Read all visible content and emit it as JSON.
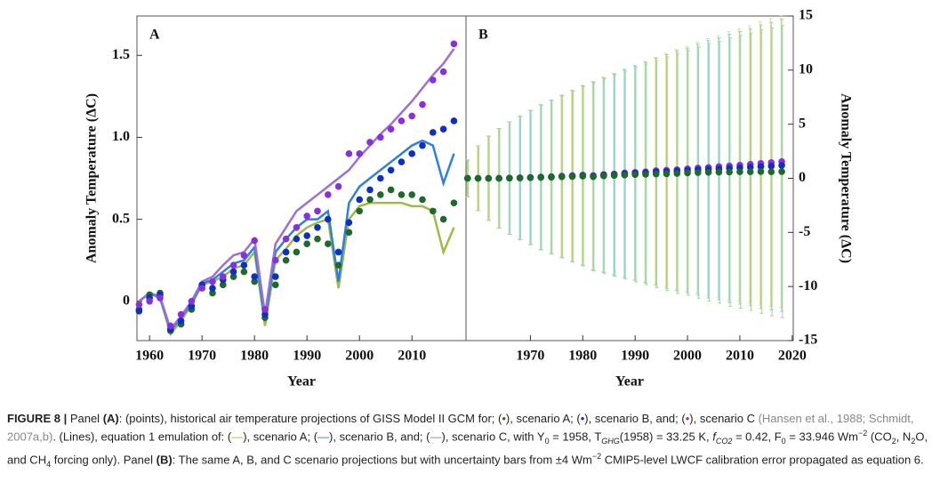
{
  "chart_data": [
    {
      "type": "scatter",
      "panel": "A",
      "xlabel": "Year",
      "ylabel": "Anomaly Temperature (ΔC)",
      "yaxis_side": "left",
      "xlim": [
        1957.6,
        2020.3
      ],
      "xticks": [
        1960,
        1970,
        1980,
        1990,
        2000,
        2010
      ],
      "ylim": [
        -0.24,
        1.74
      ],
      "yticks": [
        0,
        0.5,
        {
          "value": 1,
          "label": "1.0"
        },
        1.5
      ],
      "x": [
        1958,
        1960,
        1962,
        1964,
        1966,
        1968,
        1970,
        1972,
        1974,
        1976,
        1978,
        1980,
        1982,
        1984,
        1986,
        1988,
        1990,
        1992,
        1994,
        1996,
        1998,
        2000,
        2002,
        2004,
        2006,
        2008,
        2010,
        2012,
        2014,
        2016,
        2018
      ],
      "series": [
        {
          "name": "scenario A",
          "mode": "lines",
          "color": "#9dbb45",
          "values": [
            0,
            0.05,
            0.02,
            -0.2,
            -0.12,
            -0.02,
            0.1,
            0.12,
            0.15,
            0.2,
            0.22,
            0.3,
            -0.15,
            0.25,
            0.32,
            0.4,
            0.45,
            0.48,
            0.5,
            0.08,
            0.5,
            0.58,
            0.6,
            0.6,
            0.6,
            0.6,
            0.58,
            0.58,
            0.55,
            0.3,
            0.45
          ]
        },
        {
          "name": "scenario B",
          "mode": "lines",
          "color": "#2d7fe3",
          "values": [
            0,
            0.05,
            0.02,
            -0.18,
            -0.1,
            -0.01,
            0.11,
            0.13,
            0.18,
            0.23,
            0.25,
            0.33,
            -0.12,
            0.3,
            0.38,
            0.45,
            0.5,
            0.5,
            0.55,
            0.12,
            0.6,
            0.7,
            0.75,
            0.8,
            0.85,
            0.9,
            0.95,
            0.98,
            0.95,
            0.72,
            0.9
          ]
        },
        {
          "name": "scenario C",
          "mode": "lines",
          "color": "#9b6fd6",
          "values": [
            0,
            0.05,
            0.03,
            -0.17,
            -0.09,
            0,
            0.12,
            0.15,
            0.22,
            0.28,
            0.3,
            0.38,
            -0.08,
            0.35,
            0.45,
            0.55,
            0.6,
            0.65,
            0.7,
            0.75,
            0.8,
            0.88,
            0.95,
            1.02,
            1.08,
            1.15,
            1.22,
            1.3,
            1.38,
            1.45,
            1.54
          ]
        },
        {
          "name": "scenario A",
          "mode": "markers",
          "color": "#1d6a2b",
          "values": [
            -0.05,
            0.04,
            0.05,
            -0.18,
            -0.14,
            -0.05,
            0.1,
            0.05,
            0.1,
            0.15,
            0.18,
            0.12,
            -0.1,
            0.1,
            0.25,
            0.3,
            0.35,
            0.38,
            0.35,
            0.22,
            0.42,
            0.55,
            0.62,
            0.65,
            0.68,
            0.65,
            0.65,
            0.62,
            0.55,
            0.5,
            0.6
          ]
        },
        {
          "name": "scenario B",
          "mode": "markers",
          "color": "#0f2fc0",
          "values": [
            -0.06,
            0.02,
            0.04,
            -0.17,
            -0.12,
            -0.03,
            0.1,
            0.08,
            0.13,
            0.18,
            0.22,
            0.15,
            -0.08,
            0.15,
            0.3,
            0.38,
            0.4,
            0.45,
            0.5,
            0.3,
            0.48,
            0.62,
            0.68,
            0.75,
            0.8,
            0.85,
            0.9,
            0.95,
            1.03,
            1.05,
            1.1
          ]
        },
        {
          "name": "scenario C",
          "mode": "markers",
          "color": "#8a2fe0",
          "values": [
            -0.02,
            0,
            0.02,
            -0.15,
            -0.08,
            0,
            0.08,
            0.12,
            0.15,
            0.22,
            0.28,
            0.37,
            -0.05,
            0.25,
            0.38,
            0.45,
            0.52,
            0.55,
            0.65,
            0.7,
            0.9,
            0.9,
            0.97,
            1,
            1.05,
            1.1,
            1.13,
            1.2,
            1.35,
            1.4,
            1.57
          ]
        }
      ]
    },
    {
      "type": "scatter",
      "panel": "B",
      "xlabel": "Year",
      "ylabel": "Anomaly Temperature (ΔC)",
      "yaxis_side": "right",
      "xlim": [
        1957.7,
        2020.2
      ],
      "xticks": [
        1970,
        1980,
        1990,
        2000,
        2010,
        2020
      ],
      "ylim": [
        -15,
        15
      ],
      "yticks": [
        -15,
        -10,
        -5,
        0,
        5,
        10,
        15
      ],
      "x": [
        1958,
        1960,
        1962,
        1964,
        1966,
        1968,
        1970,
        1972,
        1974,
        1976,
        1978,
        1980,
        1982,
        1984,
        1986,
        1988,
        1990,
        1992,
        1994,
        1996,
        1998,
        2000,
        2002,
        2004,
        2006,
        2008,
        2010,
        2012,
        2014,
        2016,
        2018
      ],
      "errors": [
        1.7,
        3.0,
        3.9,
        4.6,
        5.2,
        5.7,
        6.2,
        6.7,
        7.1,
        7.5,
        7.9,
        8.3,
        8.7,
        9.0,
        9.3,
        9.6,
        9.9,
        10.2,
        10.5,
        10.8,
        11.1,
        11.3,
        11.6,
        11.9,
        12.1,
        12.4,
        12.6,
        12.8,
        13.1,
        13.3,
        13.5
      ],
      "series": [
        {
          "name": "scenario C",
          "mode": "markers",
          "color": "#8a2fe0",
          "error_color": "#e0e08a",
          "values": [
            0,
            0,
            0,
            0,
            0.02,
            0.05,
            0.08,
            0.12,
            0.15,
            0.2,
            0.25,
            0.3,
            0.25,
            0.35,
            0.4,
            0.5,
            0.55,
            0.6,
            0.7,
            0.75,
            0.8,
            0.88,
            0.95,
            1,
            1.08,
            1.15,
            1.22,
            1.3,
            1.38,
            1.45,
            1.55
          ]
        },
        {
          "name": "scenario B",
          "mode": "markers",
          "color": "#0f2fc0",
          "error_color": "#7fd4d4",
          "values": [
            0,
            0,
            0,
            0,
            0.02,
            0.04,
            0.07,
            0.1,
            0.13,
            0.17,
            0.2,
            0.25,
            0.2,
            0.3,
            0.35,
            0.42,
            0.48,
            0.52,
            0.6,
            0.62,
            0.68,
            0.72,
            0.78,
            0.82,
            0.87,
            0.92,
            0.97,
            1.02,
            1.07,
            1.12,
            1.2
          ]
        },
        {
          "name": "scenario A",
          "mode": "markers",
          "color": "#1d6a2b",
          "error_color": "#a8d49a",
          "values": [
            0,
            0,
            0,
            0,
            0.02,
            0.04,
            0.06,
            0.08,
            0.1,
            0.14,
            0.16,
            0.2,
            0.15,
            0.22,
            0.26,
            0.3,
            0.34,
            0.37,
            0.4,
            0.42,
            0.45,
            0.5,
            0.53,
            0.55,
            0.57,
            0.58,
            0.6,
            0.6,
            0.62,
            0.6,
            0.62
          ]
        }
      ]
    }
  ],
  "caption": [
    {
      "text": "FIGURE 8 |",
      "style": "b"
    },
    {
      "text": " Panel "
    },
    {
      "text": "(A)",
      "style": "b"
    },
    {
      "text": ": (points), historical air temperature projections of GISS Model II GCM for; ("
    },
    {
      "text": "•",
      "color": "#1d6a2b"
    },
    {
      "text": "), scenario A; ("
    },
    {
      "text": "•",
      "color": "#0f2fc0"
    },
    {
      "text": "), scenario B, and; ("
    },
    {
      "text": "•",
      "color": "#8a2fe0"
    },
    {
      "text": "), scenario C "
    },
    {
      "text": "(Hansen et al., 1988; Schmidt, 2007a,b)",
      "color": "#888888"
    },
    {
      "text": ". (Lines), equation 1 emulation of: ("
    },
    {
      "text": "—",
      "color": "#9dbb45"
    },
    {
      "text": "), scenario A; ("
    },
    {
      "text": "—",
      "color": "#2d7fe3"
    },
    {
      "text": "), scenario B, and; ("
    },
    {
      "text": "—",
      "color": "#9b6fd6"
    },
    {
      "text": "), scenario C, with Y"
    },
    {
      "text": "0",
      "style": "sub"
    },
    {
      "text": " = 1958, T"
    },
    {
      "text": "GHG",
      "style": "subi"
    },
    {
      "text": "(1958) = 33.25 K, "
    },
    {
      "text": "f",
      "style": "i"
    },
    {
      "text": "CO2",
      "style": "subi"
    },
    {
      "text": " = 0.42, F"
    },
    {
      "text": "0",
      "style": "sub"
    },
    {
      "text": " = 33.946 Wm"
    },
    {
      "text": "−2",
      "style": "sup"
    },
    {
      "text": " (CO"
    },
    {
      "text": "2",
      "style": "sub"
    },
    {
      "text": ", N"
    },
    {
      "text": "2",
      "style": "sub"
    },
    {
      "text": "O, and CH"
    },
    {
      "text": "4",
      "style": "sub"
    },
    {
      "text": " forcing only). Panel "
    },
    {
      "text": "(B)",
      "style": "b"
    },
    {
      "text": ": The same A, B, and C scenario projections but with uncertainty bars from ±4 Wm"
    },
    {
      "text": "−2",
      "style": "sup"
    },
    {
      "text": " CMIP5-level LWCF calibration error propagated as equation 6."
    }
  ]
}
